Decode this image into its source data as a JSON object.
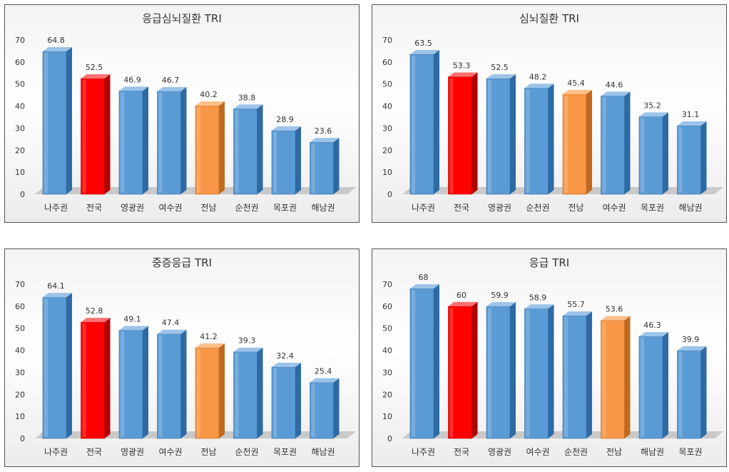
{
  "chart_data": [
    {
      "type": "bar",
      "title": "응급심뇌질환 TRI",
      "categories": [
        "나주권",
        "전국",
        "영광권",
        "여수권",
        "전남",
        "순천권",
        "목포권",
        "해남권"
      ],
      "values": [
        64.8,
        52.5,
        46.9,
        46.7,
        40.2,
        38.8,
        28.9,
        23.6
      ],
      "value_labels": [
        "64.8",
        "52.5",
        "46.9",
        "46.7",
        "40.2",
        "38.8",
        "28.9",
        "23.6"
      ],
      "ylim": [
        0,
        70
      ],
      "yticks": [
        "0",
        "10",
        "20",
        "30",
        "40",
        "50",
        "60",
        "70"
      ],
      "highlight": {
        "전국": "#ff0000",
        "전남": "#f79646"
      },
      "grid": false,
      "legend": "none"
    },
    {
      "type": "bar",
      "title": "심뇌질환 TRI",
      "categories": [
        "나주권",
        "전국",
        "영광권",
        "순천권",
        "전남",
        "여수권",
        "목포권",
        "해남권"
      ],
      "values": [
        63.5,
        53.3,
        52.5,
        48.2,
        45.4,
        44.6,
        35.2,
        31.1
      ],
      "value_labels": [
        "63.5",
        "53.3",
        "52.5",
        "48.2",
        "45.4",
        "44.6",
        "35.2",
        "31.1"
      ],
      "ylim": [
        0,
        70
      ],
      "yticks": [
        "0",
        "10",
        "20",
        "30",
        "40",
        "50",
        "60",
        "70"
      ],
      "highlight": {
        "전국": "#ff0000",
        "전남": "#f79646"
      },
      "grid": false,
      "legend": "none"
    },
    {
      "type": "bar",
      "title": "중증응급 TRI",
      "categories": [
        "나주권",
        "전국",
        "영광권",
        "여수권",
        "전남",
        "순천권",
        "목포권",
        "해남권"
      ],
      "values": [
        64.1,
        52.8,
        49.1,
        47.4,
        41.2,
        39.3,
        32.4,
        25.4
      ],
      "value_labels": [
        "64.1",
        "52.8",
        "49.1",
        "47.4",
        "41.2",
        "39.3",
        "32.4",
        "25.4"
      ],
      "ylim": [
        0,
        70
      ],
      "yticks": [
        "0",
        "10",
        "20",
        "30",
        "40",
        "50",
        "60",
        "70"
      ],
      "highlight": {
        "전국": "#ff0000",
        "전남": "#f79646"
      },
      "grid": false,
      "legend": "none"
    },
    {
      "type": "bar",
      "title": "응급 TRI",
      "categories": [
        "나주권",
        "전국",
        "영광권",
        "여수권",
        "순천권",
        "전남",
        "해남권",
        "목포권"
      ],
      "values": [
        68,
        60,
        59.9,
        58.9,
        55.7,
        53.6,
        46.3,
        39.9
      ],
      "value_labels": [
        "68",
        "60",
        "59.9",
        "58.9",
        "55.7",
        "53.6",
        "46.3",
        "39.9"
      ],
      "ylim": [
        0,
        70
      ],
      "yticks": [
        "0",
        "10",
        "20",
        "30",
        "40",
        "50",
        "60",
        "70"
      ],
      "highlight": {
        "전국": "#ff0000",
        "전남": "#f79646"
      },
      "grid": false,
      "legend": "none"
    }
  ],
  "colors": {
    "bar_front": "#5b9bd5",
    "bar_side": "#2e6aa3",
    "bar_top": "#9cc3e8",
    "national": "#ff0000",
    "national_side": "#b00000",
    "national_top": "#ff7070",
    "province": "#f79646",
    "province_side": "#c06a20",
    "province_top": "#fbc08a",
    "floor": "#c9c9c9",
    "text": "#333333"
  }
}
